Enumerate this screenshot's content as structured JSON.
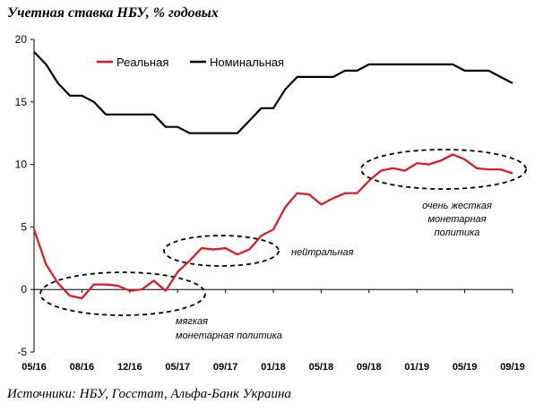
{
  "title": "Учетная ставка НБУ, % годовых",
  "source": "Источники: НБУ, Госстат, Альфа-Банк Украина",
  "chart_data": {
    "type": "line",
    "title": "Учетная ставка НБУ, % годовых",
    "xlabel": "",
    "ylabel": "",
    "ylim": [
      -5,
      20
    ],
    "yticks": [
      -5,
      0,
      5,
      10,
      15,
      20
    ],
    "xtick_labels": [
      "05/16",
      "08/16",
      "12/16",
      "05/17",
      "09/17",
      "01/18",
      "05/18",
      "09/18",
      "01/19",
      "05/19",
      "09/19"
    ],
    "grid": false,
    "legend_position": "top",
    "series": [
      {
        "name": "Реальная",
        "color": "#e0141e",
        "values": [
          4.8,
          2.0,
          0.5,
          -0.5,
          -0.7,
          0.4,
          0.4,
          0.3,
          -0.1,
          0.0,
          0.7,
          -0.1,
          1.4,
          2.3,
          3.3,
          3.2,
          3.3,
          2.8,
          3.2,
          4.3,
          4.8,
          6.6,
          7.7,
          7.6,
          6.8,
          7.3,
          7.7,
          7.7,
          8.7,
          9.5,
          9.7,
          9.5,
          10.1,
          10.0,
          10.3,
          10.8,
          10.4,
          9.7,
          9.6,
          9.6,
          9.3
        ]
      },
      {
        "name": "Номинальная",
        "color": "#000000",
        "values": [
          19.0,
          18.0,
          16.5,
          15.5,
          15.5,
          15.0,
          14.0,
          14.0,
          14.0,
          14.0,
          14.0,
          13.0,
          13.0,
          12.5,
          12.5,
          12.5,
          12.5,
          12.5,
          13.5,
          14.5,
          14.5,
          16.0,
          17.0,
          17.0,
          17.0,
          17.0,
          17.5,
          17.5,
          18.0,
          18.0,
          18.0,
          18.0,
          18.0,
          18.0,
          18.0,
          18.0,
          17.5,
          17.5,
          17.5,
          17.0,
          16.5
        ]
      }
    ],
    "annotations": [
      {
        "id": "soft",
        "lines": [
          "мягкая",
          "монетарная политика"
        ]
      },
      {
        "id": "neutral",
        "lines": [
          "нейтральная"
        ]
      },
      {
        "id": "tight",
        "lines": [
          "очень жесткая",
          "монетарная",
          "политика"
        ]
      }
    ]
  }
}
